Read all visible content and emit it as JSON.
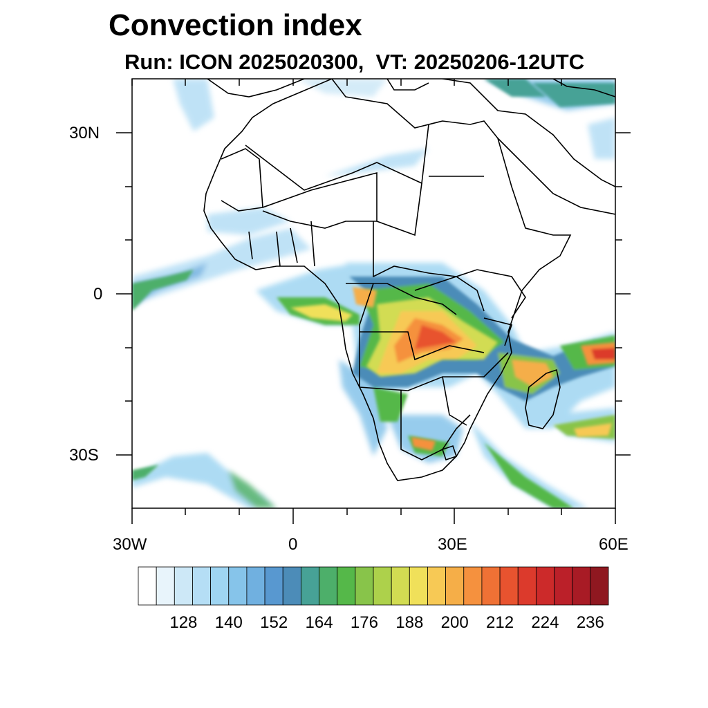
{
  "title": "Convection index",
  "subtitle": "Run: ICON 2025020300,  VT: 20250206-12UTC",
  "map": {
    "lon_range": [
      -30,
      60
    ],
    "lat_range": [
      -40,
      40
    ],
    "x_tick_labels": [
      "30W",
      "0",
      "30E",
      "60E"
    ],
    "y_tick_labels": [
      "30N",
      "0",
      "30S"
    ]
  },
  "colorbar": {
    "labels": [
      "128",
      "140",
      "152",
      "164",
      "176",
      "188",
      "200",
      "212",
      "224",
      "236"
    ],
    "colors": [
      "#ffffff",
      "#e8f4fb",
      "#cde8f7",
      "#b5def5",
      "#9fd5f2",
      "#86c4ea",
      "#70b0e0",
      "#5898d0",
      "#4c8cb8",
      "#47a296",
      "#4daf6a",
      "#55b849",
      "#88c44a",
      "#add14b",
      "#d2dc52",
      "#f0e05a",
      "#f7c955",
      "#f5ae48",
      "#f5913e",
      "#ef7135",
      "#e8532f",
      "#dc3a2c",
      "#cc2a2a",
      "#bb2029",
      "#a81b25",
      "#8f1820"
    ]
  }
}
